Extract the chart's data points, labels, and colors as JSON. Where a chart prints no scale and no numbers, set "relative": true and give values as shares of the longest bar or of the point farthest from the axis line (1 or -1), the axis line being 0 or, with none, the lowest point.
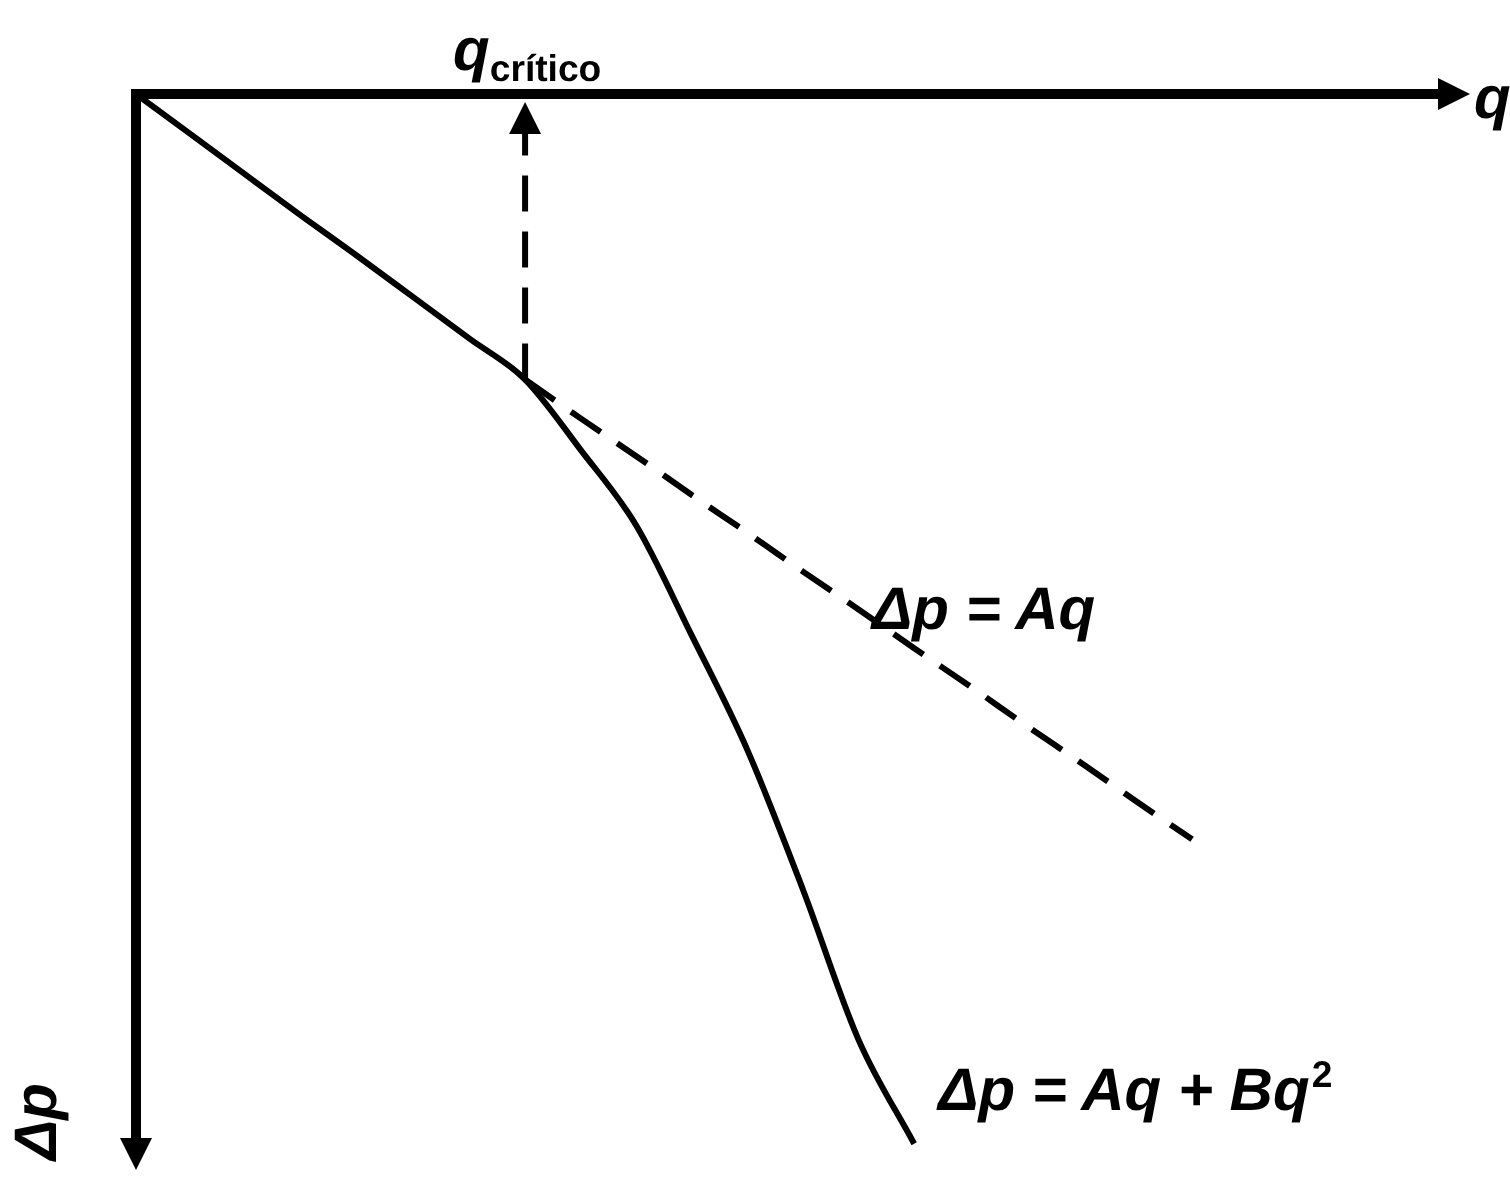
{
  "chart_data": {
    "type": "line",
    "relative": true,
    "xlabel": "q",
    "ylabel": "Δp",
    "tick_labels": false,
    "grid": false,
    "legend": false,
    "marker": "none",
    "categories": [
      null,
      null,
      null,
      null,
      null,
      null,
      null,
      null,
      null,
      null,
      null,
      null,
      null,
      null,
      null,
      null,
      null,
      null,
      null,
      null,
      null,
      null,
      null,
      null,
      null
    ],
    "series": [
      {
        "name": "Δp = Aq + Bq$^{2}$",
        "color": "#000000",
        "line_style": "solid",
        "values": [
          0,
          -0.039,
          -0.078,
          -0.117,
          -0.155,
          -0.194,
          -0.233,
          -0.272,
          -0.339,
          -0.411,
          -0.516,
          -0.625,
          -0.758,
          -0.901,
          -1,
          null,
          null,
          null,
          null,
          null,
          null,
          null,
          null,
          null,
          null
        ]
      },
      {
        "name": "Δp = Aq",
        "color": "#000000",
        "line_style": "dashed",
        "values": [
          null,
          null,
          null,
          null,
          null,
          null,
          null,
          -0.272,
          -0.309,
          -0.345,
          -0.382,
          -0.418,
          -0.455,
          -0.491,
          -0.528,
          -0.564,
          -0.601,
          -0.637,
          -0.674,
          -0.71,
          null,
          null,
          null,
          null,
          null
        ]
      }
    ],
    "annotations": [
      "q$_{crítico}$"
    ]
  }
}
